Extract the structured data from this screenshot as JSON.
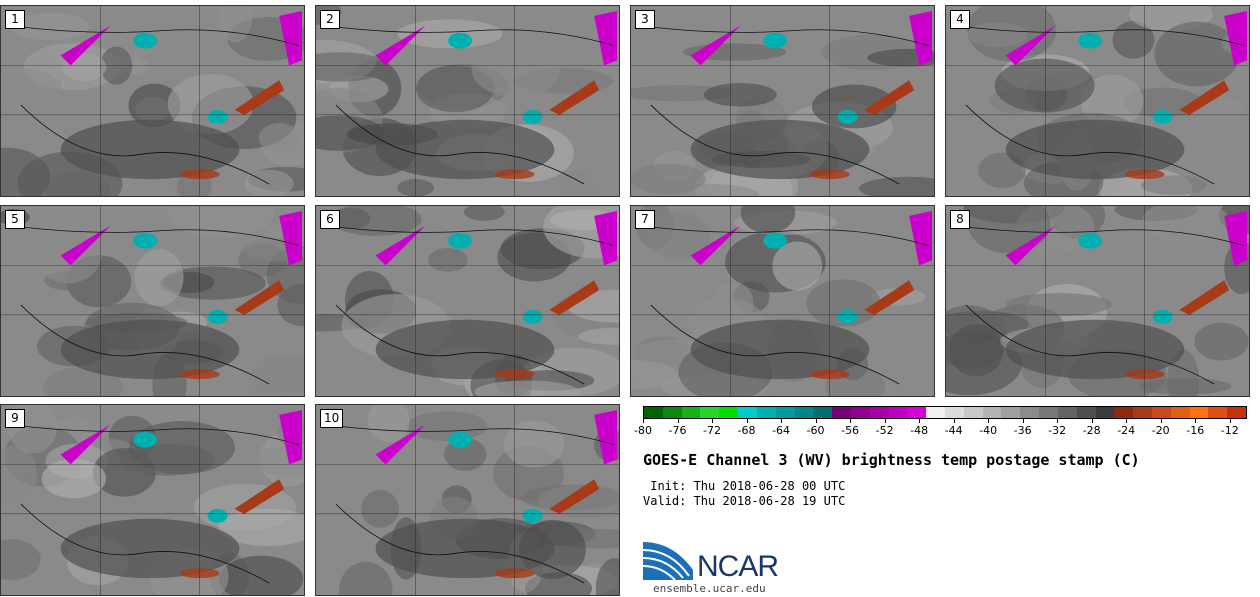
{
  "panels": [
    {
      "number": "1"
    },
    {
      "number": "2"
    },
    {
      "number": "3"
    },
    {
      "number": "4"
    },
    {
      "number": "5"
    },
    {
      "number": "6"
    },
    {
      "number": "7"
    },
    {
      "number": "8"
    },
    {
      "number": "9"
    },
    {
      "number": "10"
    }
  ],
  "colorbar": {
    "colors": [
      "#006400",
      "#0a8a0a",
      "#18b018",
      "#28d428",
      "#00e000",
      "#00cccc",
      "#00b0b0",
      "#009a9a",
      "#008888",
      "#007070",
      "#7a007a",
      "#900090",
      "#a800a8",
      "#c000c0",
      "#d800d8",
      "#f0f0f0",
      "#dcdcdc",
      "#c8c8c8",
      "#b4b4b4",
      "#a0a0a0",
      "#8c8c8c",
      "#787878",
      "#646464",
      "#505050",
      "#3c3c3c",
      "#8b2a10",
      "#a83a18",
      "#c84a18",
      "#e06010",
      "#ff7010",
      "#e05010",
      "#c83008"
    ],
    "tick_labels": [
      "-80",
      "-76",
      "-72",
      "-68",
      "-64",
      "-60",
      "-56",
      "-52",
      "-48",
      "-44",
      "-40",
      "-36",
      "-32",
      "-28",
      "-24",
      "-20",
      "-16",
      "-12"
    ],
    "tick_values": [
      -80,
      -76,
      -72,
      -68,
      -64,
      -60,
      -56,
      -52,
      -48,
      -44,
      -40,
      -36,
      -32,
      -28,
      -24,
      -20,
      -16,
      -12
    ],
    "range": [
      -80,
      -10
    ]
  },
  "title": "GOES-E Channel 3 (WV) brightness temp postage stamp (C)",
  "init": " Init: Thu 2018-06-28 00 UTC",
  "valid": "Valid: Thu 2018-06-28 19 UTC",
  "logo": {
    "text": "NCAR",
    "website": "ensemble.ucar.edu"
  },
  "colors": {
    "magenta": "#cc00cc",
    "cyan": "#00b0b0",
    "rust": "#a83a18"
  }
}
